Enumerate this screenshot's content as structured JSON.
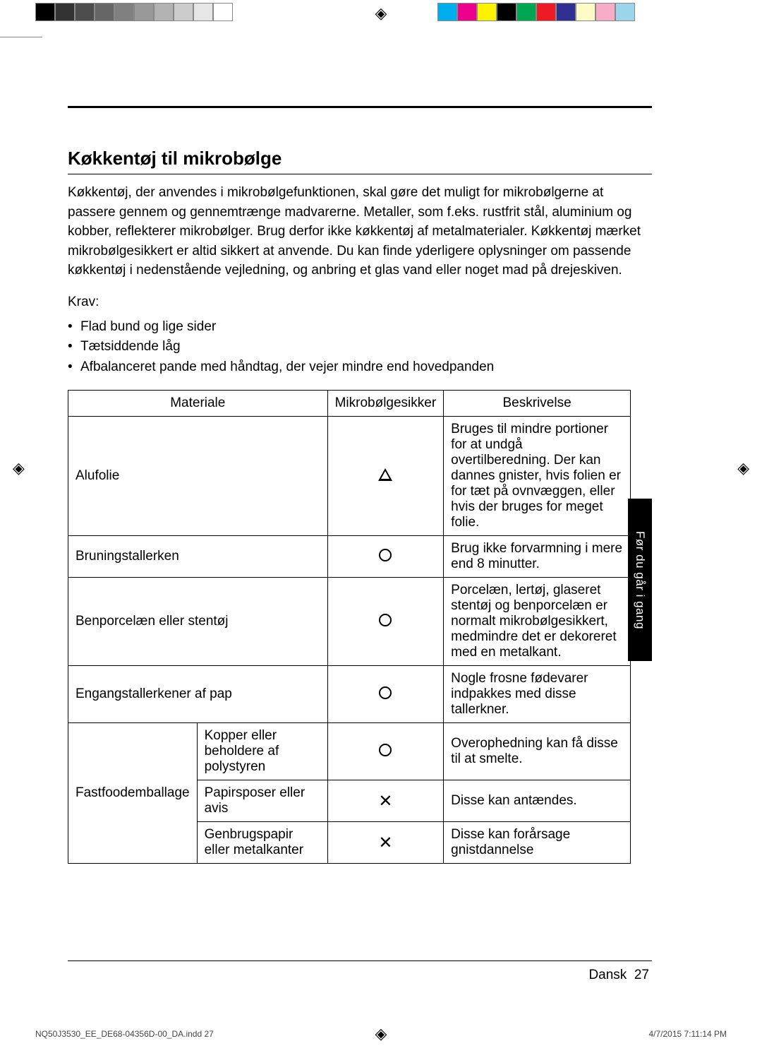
{
  "colorbars": {
    "left": [
      "#000000",
      "#333333",
      "#4d4d4d",
      "#666666",
      "#808080",
      "#999999",
      "#b3b3b3",
      "#cccccc",
      "#e6e6e6",
      "#ffffff"
    ],
    "right": [
      "#00aeef",
      "#ec008c",
      "#fff200",
      "#000000",
      "#00a651",
      "#ed1c24",
      "#2e3192",
      "#fffbc6",
      "#f7adc7",
      "#9bd5ea"
    ]
  },
  "heading": "Køkkentøj til mikrobølge",
  "intro": "Køkkentøj, der anvendes i mikrobølgefunktionen, skal gøre det muligt for mikrobølgerne at passere gennem og gennemtrænge madvarerne. Metaller, som f.eks. rustfrit stål, aluminium og kobber, reflekterer mikrobølger. Brug derfor ikke køkkentøj af metalmaterialer. Køkkentøj mærket mikrobølgesikkert er altid sikkert at anvende. Du kan finde yderligere oplysninger om passende køkkentøj i nedenstående vejledning, og anbring et glas vand eller noget mad på drejeskiven.",
  "requirements_label": "Krav:",
  "requirements": [
    "Flad bund og lige sider",
    "Tætsiddende låg",
    "Afbalanceret pande med håndtag, der vejer mindre end hovedpanden"
  ],
  "table": {
    "headers": {
      "material": "Materiale",
      "safe": "Mikrobølgesikker",
      "desc": "Beskrivelse"
    },
    "rows": [
      {
        "material": "Alufolie",
        "sub": null,
        "symbol": "triangle",
        "desc": "Bruges til mindre portioner for at undgå overtilberedning. Der kan dannes gnister, hvis folien er for tæt på ovnvæggen, eller hvis der bruges for meget folie."
      },
      {
        "material": "Bruningstallerken",
        "sub": null,
        "symbol": "circle",
        "desc": "Brug ikke forvarmning i mere end 8 minutter."
      },
      {
        "material": "Benporcelæn eller stentøj",
        "sub": null,
        "symbol": "circle",
        "desc": "Porcelæn, lertøj, glaseret stentøj og benporcelæn er normalt mikrobølgesikkert, medmindre det er dekoreret med en metalkant."
      },
      {
        "material": "Engangstallerkener af pap",
        "sub": null,
        "symbol": "circle",
        "desc": "Nogle frosne fødevarer indpakkes med disse tallerkner."
      },
      {
        "material": "Fastfoodemballage",
        "sub": "Kopper eller beholdere af polystyren",
        "symbol": "circle",
        "desc": "Overophedning kan få disse til at smelte."
      },
      {
        "material": null,
        "sub": "Papirsposer eller avis",
        "symbol": "x",
        "desc": "Disse kan antændes."
      },
      {
        "material": null,
        "sub": "Genbrugspapir eller metalkanter",
        "symbol": "x",
        "desc": "Disse kan forårsage gnistdannelse"
      }
    ]
  },
  "side_tab": "Før du går i gang",
  "footer": {
    "lang": "Dansk",
    "page": "27"
  },
  "meta": {
    "left": "NQ50J3530_EE_DE68-04356D-00_DA.indd   27",
    "right": "4/7/2015   7:11:14 PM"
  }
}
